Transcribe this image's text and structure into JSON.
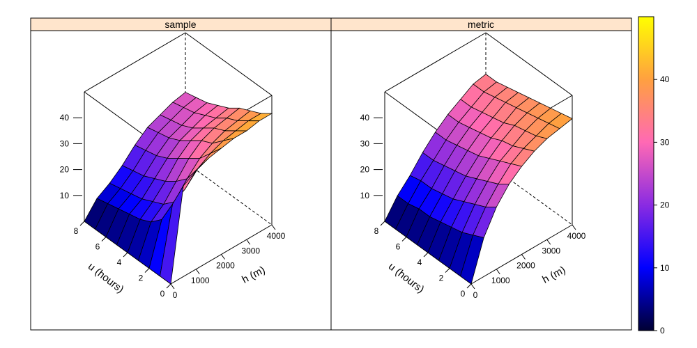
{
  "chart_data": {
    "type": "surface-3d",
    "color_scale": {
      "min": 0,
      "max": 50,
      "ticks": [
        0,
        10,
        20,
        30,
        40
      ],
      "colors": [
        "#000033",
        "#0000ff",
        "#8a2be2",
        "#ff69b4",
        "#ffa040",
        "#ffff00"
      ]
    },
    "zlim": [
      0,
      50
    ],
    "z_ticks": [
      10,
      20,
      30,
      40
    ],
    "h_ticks": [
      0,
      1000,
      2000,
      3000,
      4000
    ],
    "u_ticks": [
      0,
      2,
      4,
      6,
      8
    ],
    "xlabel": "h (m)",
    "ylabel": "u (hours)",
    "panels": [
      {
        "title": "sample",
        "h": [
          0,
          500,
          1000,
          1500,
          2000,
          2500,
          3000,
          3500,
          4000
        ],
        "u": [
          0,
          1,
          2,
          3,
          4,
          5,
          6,
          7,
          8
        ],
        "z": [
          [
            0,
            35,
            38,
            40,
            41,
            42,
            42,
            43,
            43
          ],
          [
            0,
            25,
            28,
            33,
            36,
            38,
            39,
            40,
            40
          ],
          [
            0,
            16,
            20,
            26,
            31,
            34,
            36,
            37,
            38
          ],
          [
            0,
            12,
            16,
            22,
            28,
            32,
            34,
            35,
            36
          ],
          [
            0,
            10,
            14,
            19,
            25,
            29,
            31,
            32,
            33
          ],
          [
            0,
            9,
            12,
            17,
            22,
            26,
            28,
            30,
            31
          ],
          [
            0,
            8,
            11,
            15,
            20,
            24,
            26,
            28,
            29
          ],
          [
            0,
            7,
            10,
            14,
            19,
            23,
            25,
            27,
            28
          ],
          [
            0,
            6,
            9,
            13,
            18,
            22,
            24,
            26,
            27
          ]
        ]
      },
      {
        "title": "metric",
        "h": [
          0,
          500,
          1000,
          1500,
          2000,
          2500,
          3000,
          3500,
          4000
        ],
        "u": [
          0,
          1,
          2,
          3,
          4,
          5,
          6,
          7,
          8
        ],
        "z": [
          [
            0,
            15,
            24,
            30,
            34,
            37,
            39,
            40,
            41
          ],
          [
            0,
            13,
            21,
            27,
            32,
            35,
            37,
            39,
            40
          ],
          [
            0,
            11,
            19,
            25,
            30,
            33,
            36,
            38,
            39
          ],
          [
            0,
            10,
            17,
            23,
            28,
            32,
            35,
            37,
            38
          ],
          [
            0,
            9,
            15,
            21,
            26,
            30,
            33,
            36,
            37
          ],
          [
            0,
            8,
            14,
            20,
            25,
            29,
            32,
            35,
            36
          ],
          [
            0,
            8,
            13,
            19,
            24,
            28,
            31,
            34,
            35
          ],
          [
            0,
            7,
            13,
            18,
            23,
            27,
            30,
            33,
            34
          ],
          [
            0,
            7,
            12,
            18,
            23,
            27,
            30,
            33,
            34
          ]
        ]
      }
    ]
  }
}
